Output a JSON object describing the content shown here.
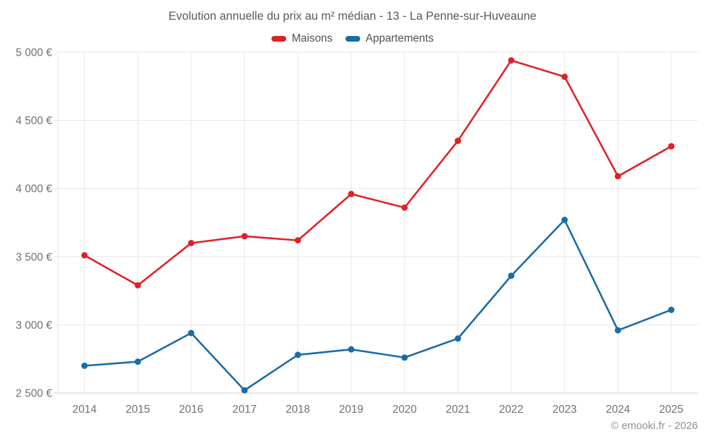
{
  "chart_data": {
    "type": "line",
    "title": "Evolution annuelle du prix au m² médian - 13 - La Penne-sur-Huveaune",
    "categories": [
      "2014",
      "2015",
      "2016",
      "2017",
      "2018",
      "2019",
      "2020",
      "2021",
      "2022",
      "2023",
      "2024",
      "2025"
    ],
    "series": [
      {
        "name": "Maisons",
        "color": "#e02127",
        "values": [
          3510,
          3290,
          3600,
          3650,
          3620,
          3960,
          3860,
          4350,
          4940,
          4820,
          4090,
          4310
        ]
      },
      {
        "name": "Appartements",
        "color": "#1a6ca8",
        "values": [
          2700,
          2730,
          2940,
          2520,
          2780,
          2820,
          2760,
          2900,
          3360,
          3770,
          2960,
          3110
        ]
      }
    ],
    "ylim": [
      2500,
      5000
    ],
    "y_tick_step": 500,
    "y_tick_labels": [
      "2 500 €",
      "3 000 €",
      "3 500 €",
      "4 000 €",
      "4 500 €",
      "5 000 €"
    ],
    "xlabel": "",
    "ylabel": "",
    "grid": true,
    "legend_position": "top",
    "grid_color": "#e7e7e7",
    "axis_line_color": "#d4d4d4",
    "marker_radius": 4.5,
    "line_width": 2.6
  },
  "footer": {
    "copyright": "© emooki.fr - 2026"
  }
}
